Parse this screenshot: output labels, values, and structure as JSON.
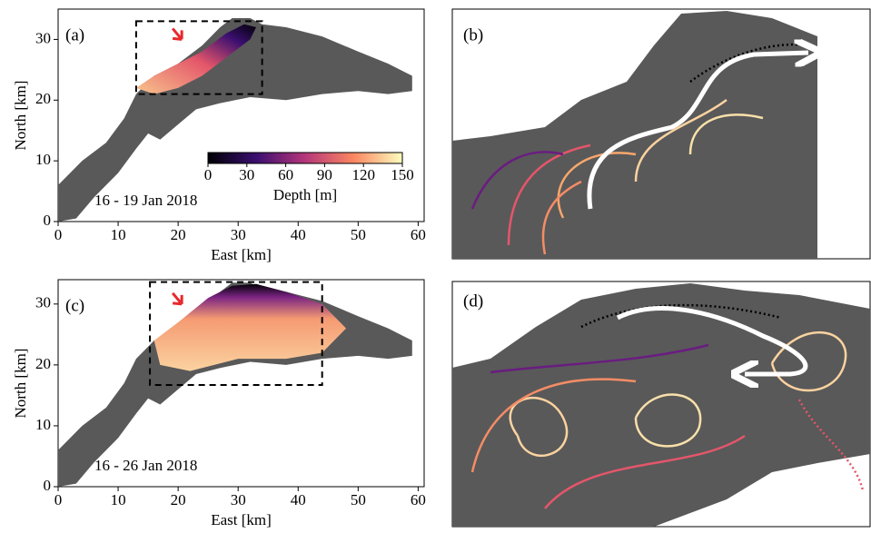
{
  "chart_data": [
    {
      "type": "map",
      "panel_label": "(a)",
      "xlabel": "East [km]",
      "ylabel": "North [km]",
      "xlim": [
        0,
        61
      ],
      "ylim": [
        0,
        35
      ],
      "xticks": [
        0,
        10,
        20,
        30,
        40,
        50,
        60
      ],
      "yticks": [
        0,
        10,
        20,
        30
      ],
      "annotation": "16 - 19 Jan 2018",
      "box": {
        "x": [
          13,
          34
        ],
        "y": [
          21,
          33
        ]
      },
      "colorbar": {
        "label": "Depth [m]",
        "lim": [
          0,
          150
        ],
        "ticks": [
          0,
          30,
          60,
          90,
          120,
          150
        ]
      }
    },
    {
      "type": "zoom",
      "panel_label": "(b)"
    },
    {
      "type": "map",
      "panel_label": "(c)",
      "xlabel": "East [km]",
      "ylabel": "North [km]",
      "xlim": [
        0,
        61
      ],
      "ylim": [
        0,
        34
      ],
      "xticks": [
        0,
        10,
        20,
        30,
        40,
        50,
        60
      ],
      "yticks": [
        0,
        10,
        20,
        30
      ],
      "annotation": "16 - 26 Jan 2018",
      "box": {
        "x": [
          15.3,
          44
        ],
        "y": [
          16.7,
          33.6
        ]
      }
    },
    {
      "type": "zoom",
      "panel_label": "(d)"
    }
  ]
}
